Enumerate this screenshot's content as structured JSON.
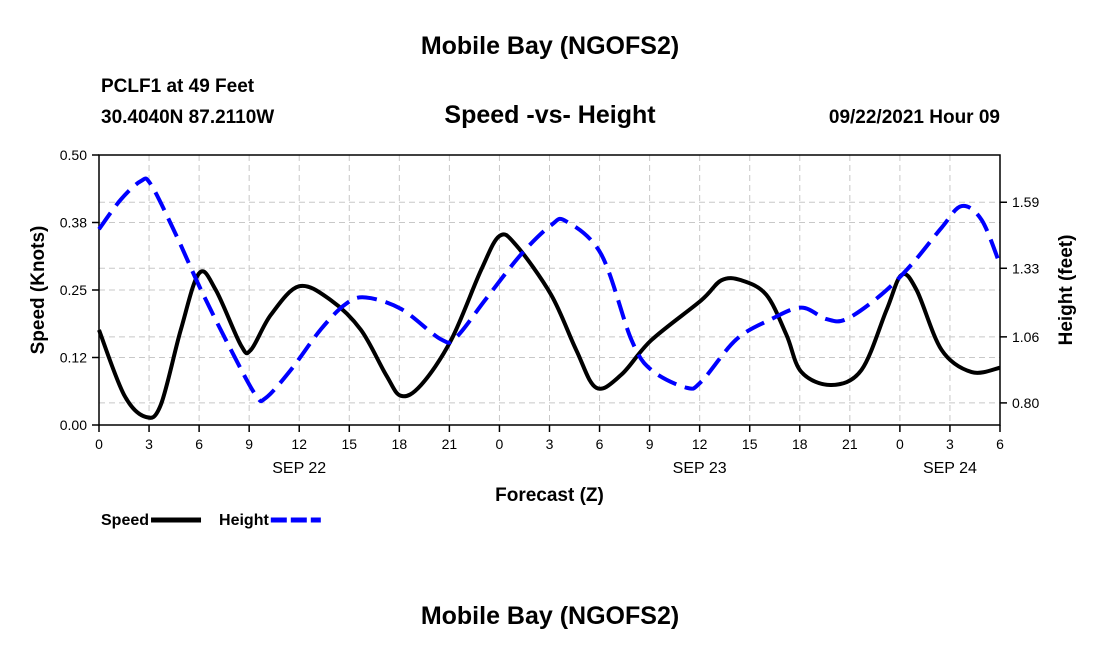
{
  "chart_data": {
    "type": "line",
    "title": "Mobile Bay (NGOFS2)",
    "subtitle": "Speed -vs- Height",
    "station": "PCLF1 at 49 Feet",
    "location": "30.4040N  87.2110W",
    "forecast_time": "09/22/2021 Hour 09",
    "footer": "Mobile Bay (NGOFS2)",
    "xlabel": "Forecast (Z)",
    "ylabel": "Speed (Knots)",
    "y2label": "Height (feet)",
    "xlim": [
      0,
      54
    ],
    "ylim": [
      0,
      0.5
    ],
    "y2lim": [
      0.713,
      1.776
    ],
    "x_ticks": [
      0,
      3,
      6,
      9,
      12,
      15,
      18,
      21,
      24,
      27,
      30,
      33,
      36,
      39,
      42,
      45,
      48,
      51,
      54
    ],
    "x_tick_labels": [
      "0",
      "3",
      "6",
      "9",
      "12",
      "15",
      "18",
      "21",
      "0",
      "3",
      "6",
      "9",
      "12",
      "15",
      "18",
      "21",
      "0",
      "3",
      "6"
    ],
    "date_labels": [
      {
        "hour": 12,
        "label": "SEP 22"
      },
      {
        "hour": 36,
        "label": "SEP 23"
      },
      {
        "hour": 51,
        "label": "SEP 24"
      }
    ],
    "y_ticks": [
      0,
      0.125,
      0.25,
      0.375,
      0.5
    ],
    "y_tick_labels": [
      "0.00",
      "0.12",
      "0.25",
      "0.38",
      "0.50"
    ],
    "y2_ticks": [
      0.8,
      1.06,
      1.33,
      1.59
    ],
    "y2_tick_labels": [
      "0.80",
      "1.06",
      "1.33",
      "1.59"
    ],
    "grid": true,
    "legend_position": "bottom-left",
    "series": [
      {
        "name": "Speed",
        "axis": "left",
        "color": "#000000",
        "dash": "solid",
        "x": [
          0,
          1.5,
          2.8,
          3.7,
          4.9,
          6,
          7,
          8.5,
          9.1,
          10.3,
          12,
          13.9,
          15.7,
          17.2,
          18.1,
          19.3,
          21.1,
          22.9,
          24,
          25,
          27.1,
          28.6,
          29.8,
          31.3,
          33.1,
          36.1,
          37.3,
          38.5,
          40,
          41.2,
          42.1,
          43.9,
          45.7,
          47.2,
          48.1,
          49,
          50.5,
          52.3,
          54
        ],
        "values": [
          0.176,
          0.056,
          0.015,
          0.037,
          0.176,
          0.281,
          0.25,
          0.148,
          0.139,
          0.204,
          0.257,
          0.231,
          0.176,
          0.093,
          0.054,
          0.074,
          0.157,
          0.287,
          0.35,
          0.333,
          0.241,
          0.139,
          0.069,
          0.093,
          0.157,
          0.231,
          0.268,
          0.268,
          0.241,
          0.167,
          0.098,
          0.074,
          0.102,
          0.213,
          0.278,
          0.25,
          0.139,
          0.098,
          0.106
        ]
      },
      {
        "name": "Height",
        "axis": "right",
        "color": "#0000ff",
        "dash": "dashed",
        "x": [
          0,
          1.3,
          2.5,
          3.1,
          4.6,
          6.1,
          7.9,
          9.4,
          10,
          11.5,
          13.3,
          14.8,
          16,
          18.1,
          20.5,
          21.4,
          23.2,
          25.3,
          27.1,
          28,
          30.1,
          31.9,
          33.1,
          35.2,
          36.1,
          38.2,
          40.3,
          42.1,
          43.6,
          44.8,
          46.9,
          48.7,
          50.5,
          51.7,
          52.9,
          54
        ],
        "values": [
          1.484,
          1.6,
          1.673,
          1.661,
          1.464,
          1.247,
          1.01,
          0.83,
          0.82,
          0.93,
          1.09,
          1.19,
          1.215,
          1.17,
          1.05,
          1.058,
          1.21,
          1.385,
          1.5,
          1.515,
          1.385,
          1.05,
          0.93,
          0.86,
          0.884,
          1.05,
          1.13,
          1.175,
          1.13,
          1.13,
          1.227,
          1.345,
          1.49,
          1.575,
          1.52,
          1.345
        ]
      }
    ]
  }
}
